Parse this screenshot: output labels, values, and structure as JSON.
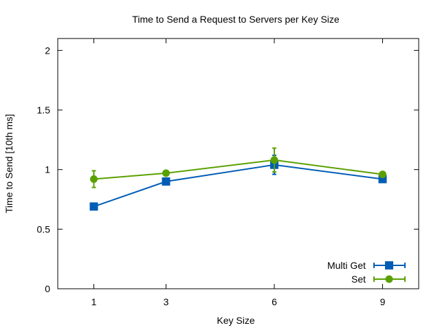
{
  "chart_data": {
    "type": "line",
    "title": "Time to Send a Request to Servers per Key Size",
    "xlabel": "Key Size",
    "ylabel": "Time to Send [10th ms]",
    "x": [
      1,
      3,
      6,
      9
    ],
    "x_tick_labels": [
      "1",
      "3",
      "6",
      "9"
    ],
    "xlim": [
      0,
      10
    ],
    "ylim": [
      0,
      2.1
    ],
    "y_ticks": [
      0,
      0.5,
      1,
      1.5,
      2
    ],
    "y_tick_labels": [
      "0",
      "0.5",
      "1",
      "1.5",
      "2"
    ],
    "grid": false,
    "legend_position": "bottom-right",
    "series": [
      {
        "name": "Multi Get",
        "color": "#005db5",
        "marker": "square",
        "values": [
          0.69,
          0.9,
          1.04,
          0.92
        ],
        "errors": [
          0.0,
          0.0,
          0.08,
          0.0
        ]
      },
      {
        "name": "Set",
        "color": "#5aa000",
        "marker": "circle",
        "values": [
          0.92,
          0.97,
          1.08,
          0.96
        ],
        "errors": [
          0.07,
          0.0,
          0.1,
          0.0
        ]
      }
    ]
  }
}
